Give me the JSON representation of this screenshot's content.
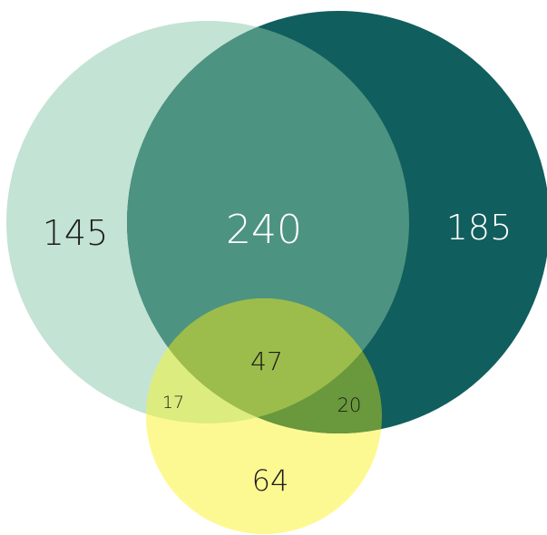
{
  "diagram": {
    "type": "venn",
    "sets": [
      {
        "id": "A",
        "color": "#c3e3d4"
      },
      {
        "id": "B",
        "color": "#115e5e"
      },
      {
        "id": "C",
        "color": "#fdf992"
      }
    ],
    "regions": {
      "a_only": "145",
      "ab": "240",
      "b_only": "185",
      "abc": "47",
      "ac": "17",
      "bc": "20",
      "c_only": "64"
    },
    "colors": {
      "a_only": "#c3e3d4",
      "b_only": "#115e5e",
      "c_only": "#fdf992",
      "ab": "#4d9381",
      "ac": "#dcec7e",
      "bc": "#6a983c",
      "abc": "#9cbd4b",
      "label_dark": "#1c1c1c",
      "label_light": "#ffffff"
    }
  }
}
